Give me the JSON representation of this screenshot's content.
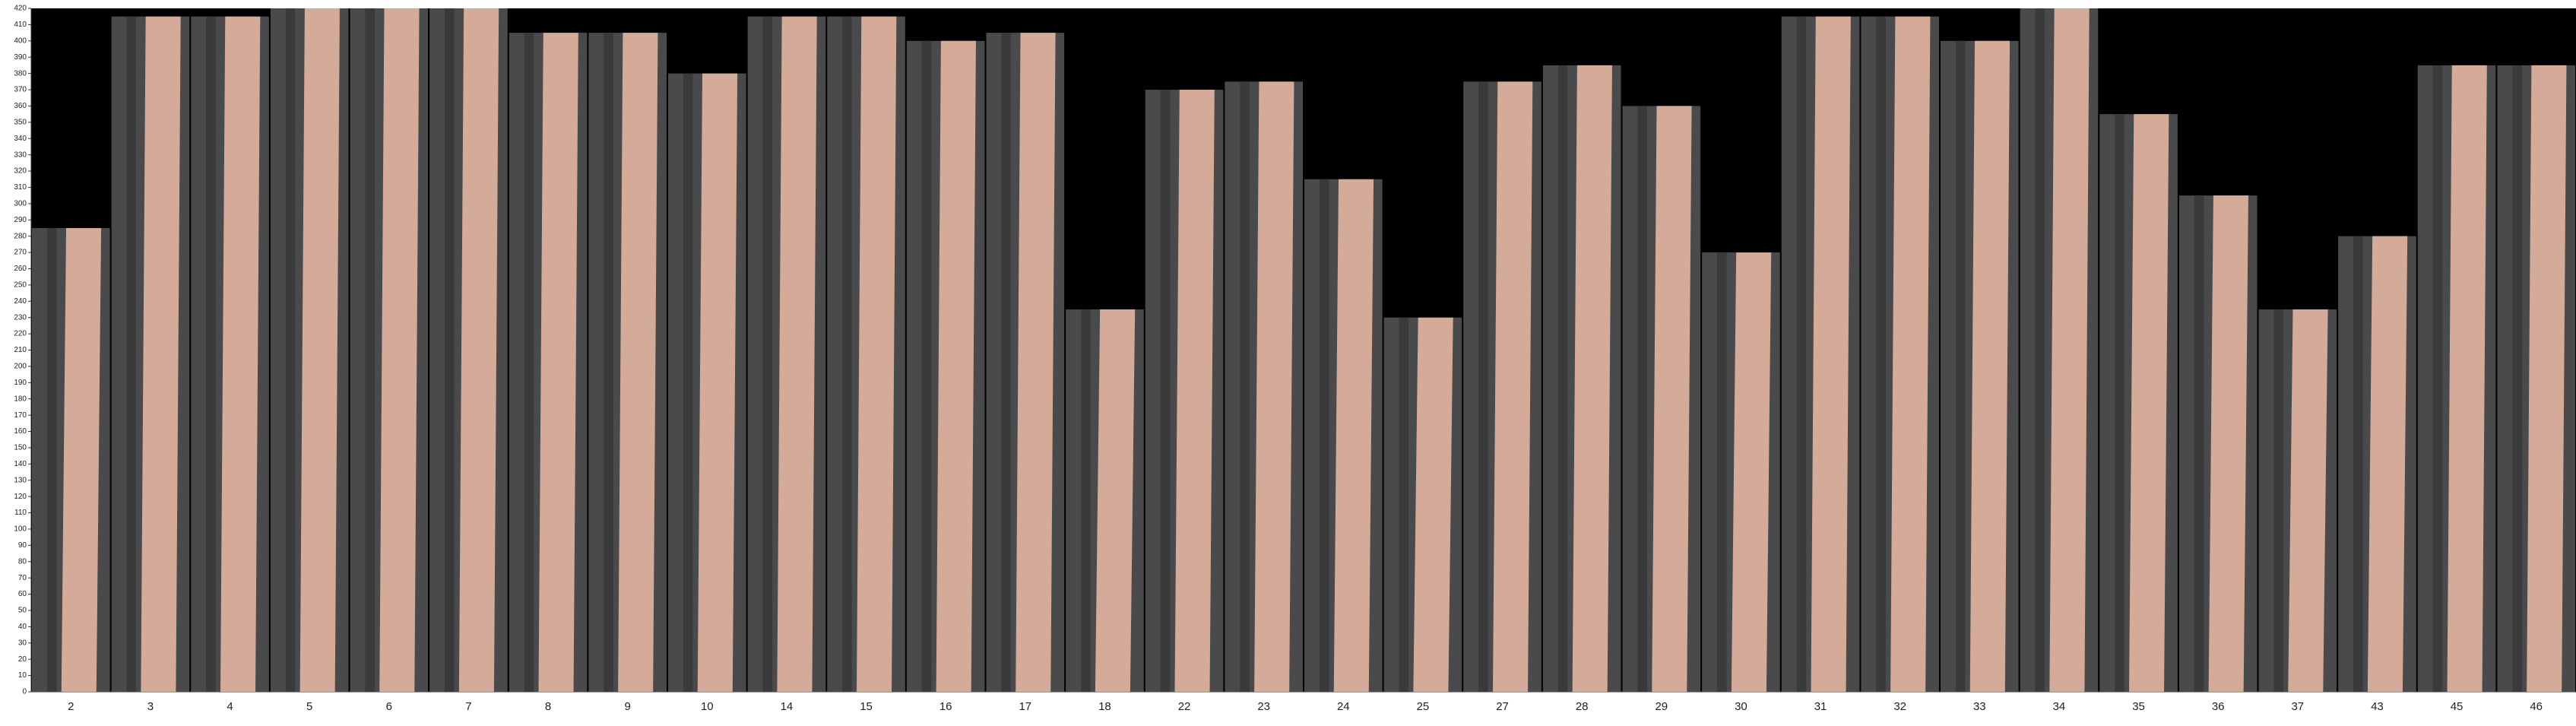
{
  "chart_data": {
    "type": "bar",
    "categories": [
      "2",
      "3",
      "4",
      "5",
      "6",
      "7",
      "8",
      "9",
      "10",
      "14",
      "15",
      "16",
      "17",
      "18",
      "22",
      "23",
      "24",
      "25",
      "27",
      "28",
      "29",
      "30",
      "31",
      "32",
      "33",
      "34",
      "35",
      "36",
      "37",
      "43",
      "45",
      "46"
    ],
    "values": [
      285,
      415,
      415,
      420,
      420,
      420,
      405,
      405,
      380,
      415,
      415,
      400,
      405,
      235,
      370,
      375,
      315,
      230,
      375,
      385,
      360,
      270,
      415,
      415,
      400,
      420,
      355,
      305,
      235,
      280,
      385,
      385
    ],
    "color": "#d4ab98",
    "ylim": [
      0,
      420
    ],
    "yticks": [
      0,
      10,
      20,
      30,
      40,
      50,
      60,
      70,
      80,
      90,
      100,
      110,
      120,
      130,
      140,
      150,
      160,
      170,
      180,
      190,
      200,
      210,
      220,
      230,
      240,
      250,
      260,
      270,
      280,
      290,
      300,
      310,
      320,
      330,
      340,
      350,
      360,
      370,
      380,
      390,
      400,
      410,
      420
    ]
  }
}
